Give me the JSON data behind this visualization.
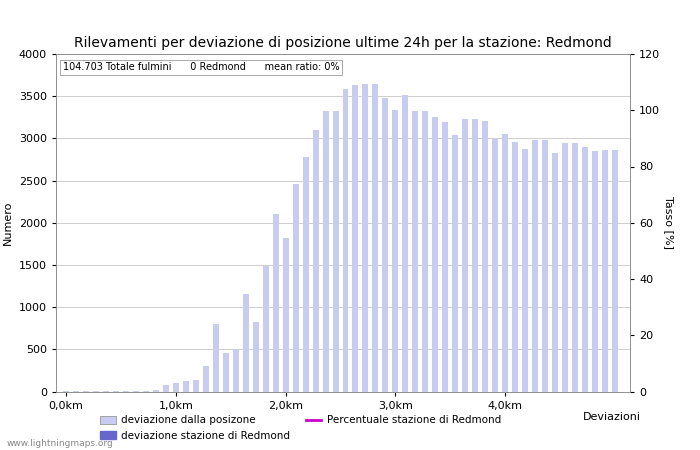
{
  "title": "Rilevamenti per deviazione di posizione ultime 24h per la stazione: Redmond",
  "xlabel": "Deviazioni",
  "ylabel_left": "Numero",
  "ylabel_right": "Tasso [%]",
  "annotation": "104.703 Totale fulmini      0 Redmond      mean ratio: 0%",
  "watermark": "www.lightningmaps.org",
  "bar_values": [
    5,
    5,
    5,
    8,
    8,
    8,
    10,
    10,
    10,
    20,
    80,
    100,
    120,
    140,
    300,
    800,
    460,
    500,
    1150,
    820,
    1490,
    2100,
    1820,
    2460,
    2780,
    3100,
    3320,
    3330,
    3580,
    3630,
    3640,
    3640,
    3480,
    3340,
    3510,
    3330,
    3330,
    3250,
    3200,
    3040,
    3230,
    3230,
    3210,
    2990,
    3050,
    2960,
    2870,
    2980,
    2980,
    2830,
    2950,
    2940,
    2900,
    2850,
    2860,
    2860
  ],
  "ylim_left": [
    0,
    4000
  ],
  "ylim_right": [
    0,
    120
  ],
  "yticks_left": [
    0,
    500,
    1000,
    1500,
    2000,
    2500,
    3000,
    3500,
    4000
  ],
  "yticks_right": [
    0,
    20,
    40,
    60,
    80,
    100,
    120
  ],
  "bar_color_light": "#c8ccee",
  "bar_color_dark": "#6666cc",
  "line_color": "#cc00cc",
  "grid_color": "#bbbbbb",
  "background_color": "#ffffff",
  "title_fontsize": 10,
  "label_fontsize": 8,
  "tick_fontsize": 8,
  "legend_label_1": "deviazione dalla posizone",
  "legend_label_2": "deviazione stazione di Redmond",
  "legend_label_3": "Percentuale stazione di Redmond"
}
